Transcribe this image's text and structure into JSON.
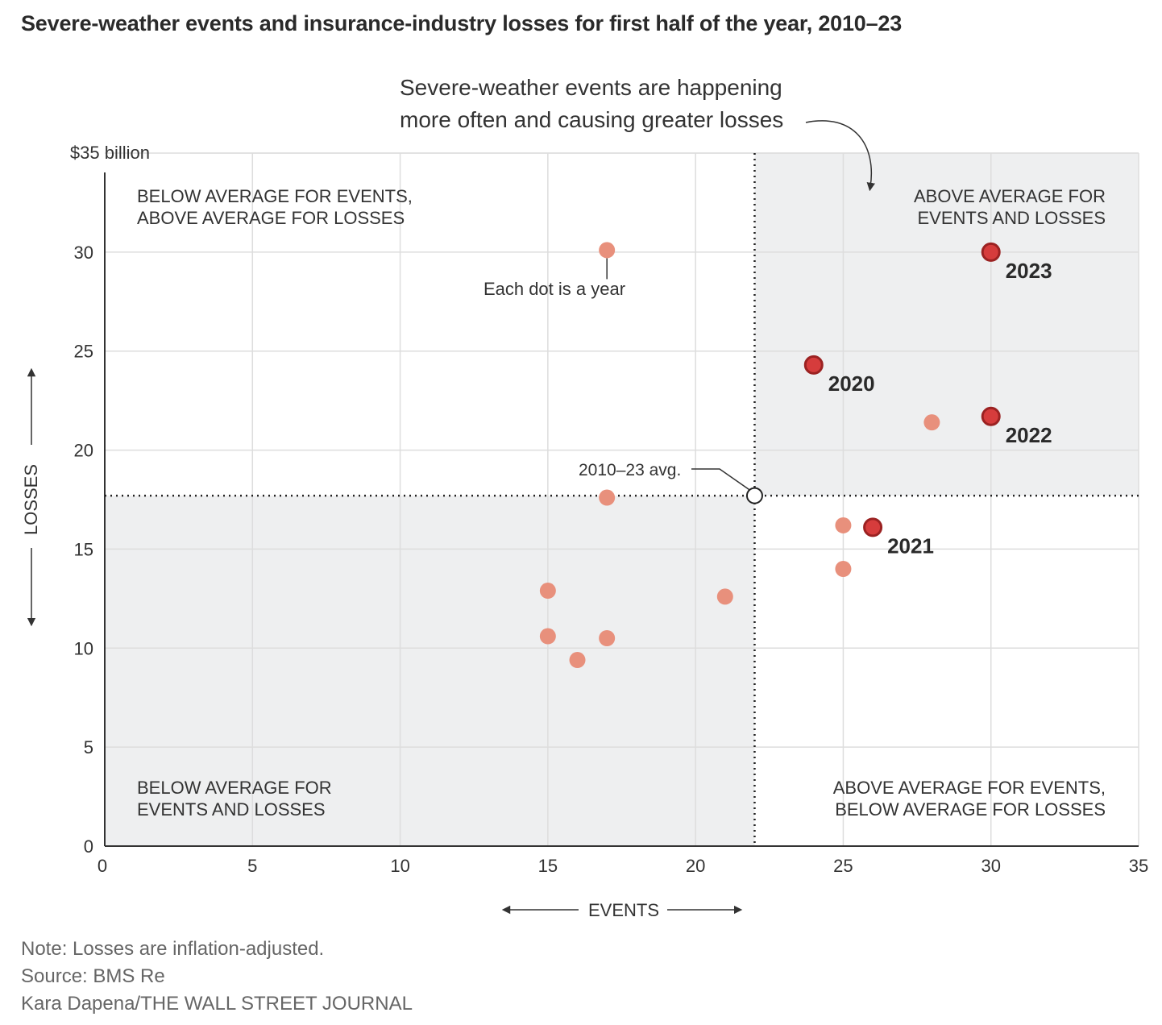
{
  "title": "Severe-weather events and insurance-industry losses for first half of the year, 2010–23",
  "chart_data": {
    "type": "scatter",
    "x_label": "EVENTS",
    "y_label": "LOSSES",
    "y_unit_label": "$35 billion",
    "xlim": [
      0,
      35
    ],
    "ylim": [
      0,
      35
    ],
    "x_ticks": [
      0,
      5,
      10,
      15,
      20,
      25,
      30,
      35
    ],
    "y_ticks": [
      0,
      5,
      10,
      15,
      20,
      25,
      30
    ],
    "grid": true,
    "average": {
      "x": 22,
      "y": 17.7,
      "label": "2010–23 avg."
    },
    "quadrant_labels": {
      "top_left": [
        "BELOW AVERAGE FOR EVENTS,",
        "ABOVE AVERAGE FOR LOSSES"
      ],
      "top_right": [
        "ABOVE AVERAGE FOR",
        "EVENTS AND LOSSES"
      ],
      "bottom_left": [
        "BELOW AVERAGE FOR",
        "EVENTS AND LOSSES"
      ],
      "bottom_right": [
        "ABOVE AVERAGE FOR EVENTS,",
        "BELOW AVERAGE FOR LOSSES"
      ]
    },
    "annotation": {
      "lines": [
        "Severe-weather events are happening",
        "more often and causing greater losses"
      ]
    },
    "dot_note": "Each dot is a year",
    "points": [
      {
        "x": 17,
        "y": 30.1,
        "label": ""
      },
      {
        "x": 17,
        "y": 17.6,
        "label": ""
      },
      {
        "x": 15,
        "y": 12.9,
        "label": ""
      },
      {
        "x": 15,
        "y": 10.6,
        "label": ""
      },
      {
        "x": 16,
        "y": 9.4,
        "label": ""
      },
      {
        "x": 17,
        "y": 10.5,
        "label": ""
      },
      {
        "x": 21,
        "y": 12.6,
        "label": ""
      },
      {
        "x": 25,
        "y": 16.2,
        "label": ""
      },
      {
        "x": 25,
        "y": 14.0,
        "label": ""
      },
      {
        "x": 28,
        "y": 21.4,
        "label": ""
      },
      {
        "x": 24,
        "y": 24.3,
        "label": "2020"
      },
      {
        "x": 26,
        "y": 16.1,
        "label": "2021"
      },
      {
        "x": 30,
        "y": 21.7,
        "label": "2022"
      },
      {
        "x": 30,
        "y": 30.0,
        "label": "2023"
      }
    ],
    "colors": {
      "dot": "#e8907c",
      "highlight": "#d63c3c",
      "highlight_stroke": "#9b2222",
      "shade": "#eeeff0",
      "grid": "#dddddd"
    }
  },
  "footer": {
    "note": "Note: Losses are inflation-adjusted.",
    "source": "Source: BMS Re",
    "credit": "Kara Dapena/THE WALL STREET JOURNAL"
  }
}
